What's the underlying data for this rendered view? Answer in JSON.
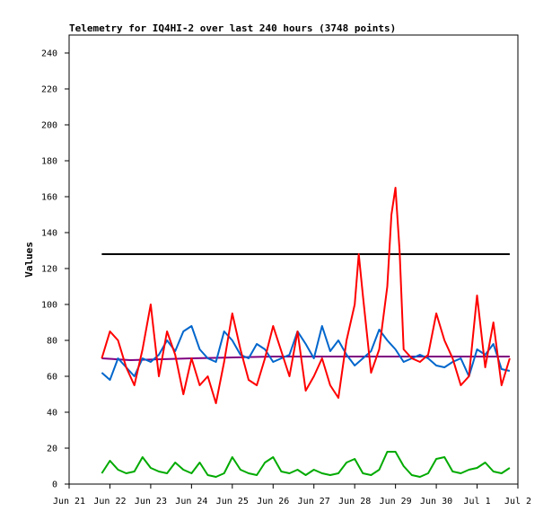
{
  "chart_data": {
    "type": "line",
    "title": "Telemetry for IQ4HI-2 over last 240 hours (3748 points)",
    "xlabel": "",
    "ylabel": "Values",
    "xlim": [
      0,
      11
    ],
    "ylim": [
      0,
      250
    ],
    "x_ticks": [
      {
        "x": 0,
        "label": "Jun 21"
      },
      {
        "x": 1,
        "label": "Jun 22"
      },
      {
        "x": 2,
        "label": "Jun 23"
      },
      {
        "x": 3,
        "label": "Jun 24"
      },
      {
        "x": 4,
        "label": "Jun 25"
      },
      {
        "x": 5,
        "label": "Jun 26"
      },
      {
        "x": 6,
        "label": "Jun 27"
      },
      {
        "x": 7,
        "label": "Jun 28"
      },
      {
        "x": 8,
        "label": "Jun 29"
      },
      {
        "x": 9,
        "label": "Jun 30"
      },
      {
        "x": 10,
        "label": "Jul 1"
      },
      {
        "x": 11,
        "label": "Jul 2"
      }
    ],
    "y_ticks": [
      0,
      20,
      40,
      60,
      80,
      100,
      120,
      140,
      160,
      180,
      200,
      220,
      240
    ],
    "grid": false,
    "legend": "none",
    "series": [
      {
        "color": "#000000",
        "x": [
          0.8,
          10.8
        ],
        "values": [
          128,
          128
        ]
      },
      {
        "color": "#800080",
        "x": [
          0.8,
          1.5,
          3.0,
          5.0,
          7.0,
          9.0,
          10.8
        ],
        "values": [
          70,
          69,
          70,
          71,
          71,
          71,
          71
        ]
      },
      {
        "color": "#0066cc",
        "x": [
          0.8,
          1.0,
          1.2,
          1.4,
          1.6,
          1.8,
          2.0,
          2.2,
          2.4,
          2.6,
          2.8,
          3.0,
          3.2,
          3.4,
          3.6,
          3.8,
          4.0,
          4.2,
          4.4,
          4.6,
          4.8,
          5.0,
          5.2,
          5.4,
          5.6,
          5.8,
          6.0,
          6.2,
          6.4,
          6.6,
          6.8,
          7.0,
          7.2,
          7.4,
          7.6,
          7.8,
          8.0,
          8.2,
          8.4,
          8.6,
          8.8,
          9.0,
          9.2,
          9.4,
          9.6,
          9.8,
          10.0,
          10.2,
          10.4,
          10.6,
          10.8
        ],
        "values": [
          62,
          58,
          70,
          65,
          60,
          70,
          68,
          72,
          80,
          74,
          85,
          88,
          75,
          70,
          68,
          85,
          80,
          72,
          70,
          78,
          75,
          68,
          70,
          72,
          85,
          78,
          70,
          88,
          74,
          80,
          72,
          66,
          70,
          74,
          86,
          80,
          75,
          68,
          70,
          72,
          70,
          66,
          65,
          68,
          70,
          60,
          75,
          72,
          78,
          64,
          63
        ]
      },
      {
        "color": "#ff0000",
        "x": [
          0.8,
          1.0,
          1.2,
          1.4,
          1.6,
          1.8,
          2.0,
          2.2,
          2.4,
          2.6,
          2.8,
          3.0,
          3.2,
          3.4,
          3.6,
          3.8,
          4.0,
          4.2,
          4.4,
          4.6,
          4.8,
          5.0,
          5.2,
          5.4,
          5.6,
          5.8,
          6.0,
          6.2,
          6.4,
          6.6,
          6.8,
          7.0,
          7.1,
          7.2,
          7.4,
          7.6,
          7.8,
          7.9,
          8.0,
          8.1,
          8.2,
          8.4,
          8.6,
          8.8,
          9.0,
          9.2,
          9.4,
          9.6,
          9.8,
          10.0,
          10.2,
          10.4,
          10.6,
          10.8
        ],
        "values": [
          70,
          85,
          80,
          65,
          55,
          75,
          100,
          60,
          85,
          72,
          50,
          70,
          55,
          60,
          45,
          68,
          95,
          75,
          58,
          55,
          70,
          88,
          74,
          60,
          85,
          52,
          60,
          70,
          55,
          48,
          80,
          100,
          128,
          105,
          62,
          75,
          110,
          150,
          165,
          130,
          75,
          70,
          68,
          72,
          95,
          80,
          70,
          55,
          60,
          105,
          65,
          90,
          55,
          70
        ]
      },
      {
        "color": "#00aa00",
        "x": [
          0.8,
          1.0,
          1.2,
          1.4,
          1.6,
          1.8,
          2.0,
          2.2,
          2.4,
          2.6,
          2.8,
          3.0,
          3.2,
          3.4,
          3.6,
          3.8,
          4.0,
          4.2,
          4.4,
          4.6,
          4.8,
          5.0,
          5.2,
          5.4,
          5.6,
          5.8,
          6.0,
          6.2,
          6.4,
          6.6,
          6.8,
          7.0,
          7.2,
          7.4,
          7.6,
          7.8,
          8.0,
          8.2,
          8.4,
          8.6,
          8.8,
          9.0,
          9.2,
          9.4,
          9.6,
          9.8,
          10.0,
          10.2,
          10.4,
          10.6,
          10.8
        ],
        "values": [
          6,
          13,
          8,
          6,
          7,
          15,
          9,
          7,
          6,
          12,
          8,
          6,
          12,
          5,
          4,
          6,
          15,
          8,
          6,
          5,
          12,
          15,
          7,
          6,
          8,
          5,
          8,
          6,
          5,
          6,
          12,
          14,
          6,
          5,
          8,
          18,
          18,
          10,
          5,
          4,
          6,
          14,
          15,
          7,
          6,
          8,
          9,
          12,
          7,
          6,
          9
        ]
      }
    ]
  }
}
